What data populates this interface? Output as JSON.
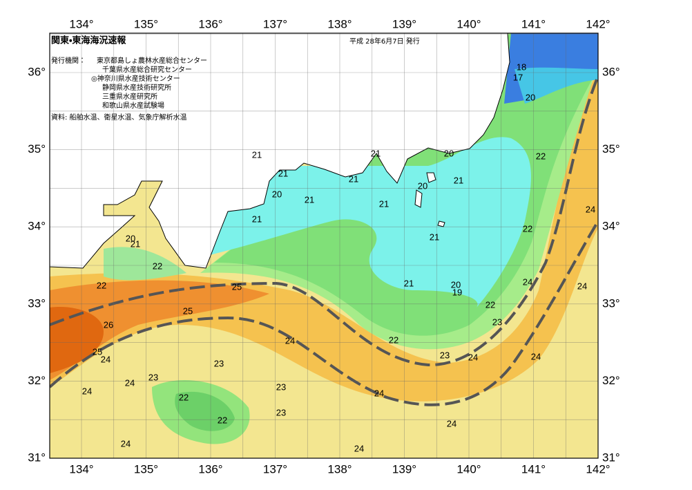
{
  "header": {
    "title": "関東・東海海況速報",
    "date": "平成 28年6月7日 発行",
    "publisher_label": "発行機関：",
    "publishers": [
      "東京都島しょ農林水産総合センター",
      "千葉県水産総合研究センター",
      "◎神奈川県水産技術センター",
      "静岡県水産技術研究所",
      "三重県水産研究所",
      "和歌山県水産試験場"
    ],
    "source": "資料: 船舶水温、衛星水温、気象庁解析水温"
  },
  "axes": {
    "longitude_labels": [
      "134°",
      "135°",
      "136°",
      "137°",
      "138°",
      "139°",
      "140°",
      "141°",
      "142°"
    ],
    "latitude_labels": [
      "36°",
      "35°",
      "34°",
      "33°",
      "32°",
      "31°"
    ]
  },
  "contour_labels": [
    18,
    17,
    20,
    21,
    20,
    22,
    21,
    21,
    21,
    20,
    21,
    20,
    21,
    21,
    24,
    21,
    22,
    21,
    20,
    21,
    22,
    22,
    25,
    21,
    20,
    19,
    24,
    24,
    22,
    25,
    23,
    26,
    24,
    22,
    25,
    24,
    23,
    24,
    24,
    23,
    23,
    24,
    24,
    23,
    24,
    22,
    23,
    22,
    24,
    24,
    24
  ]
}
